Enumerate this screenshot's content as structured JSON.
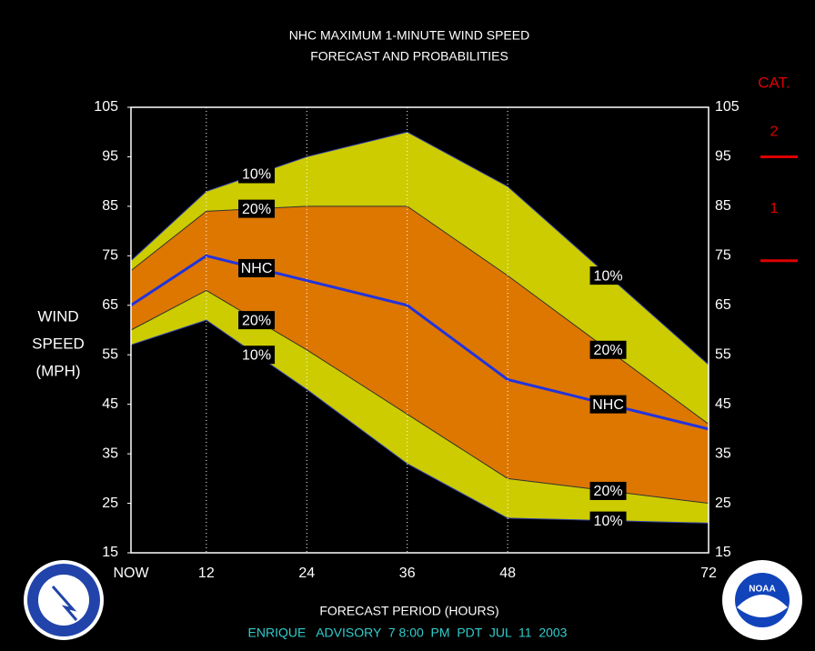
{
  "chart_data": {
    "type": "band",
    "title": "NHC MAXIMUM 1-MINUTE WIND SPEED",
    "subtitle": "FORECAST AND PROBABILITIES",
    "y_label": [
      "WIND",
      "SPEED",
      "(MPH)"
    ],
    "x_label": "FORECAST PERIOD (HOURS)",
    "footer": "ENRIQUE   ADVISORY  7 8:00  PM  PDT  JUL  11  2003",
    "x": [
      3,
      12,
      24,
      36,
      48,
      72
    ],
    "series": [
      {
        "name": "10%",
        "color": "#3344aa",
        "values": [
          74,
          88,
          95,
          100,
          89,
          53
        ]
      },
      {
        "name": "20%",
        "color": "#333333",
        "values": [
          72,
          84,
          85,
          85,
          71,
          41
        ]
      },
      {
        "name": "NHC",
        "color": "#2233dd",
        "values": [
          65,
          75,
          70,
          65,
          50,
          40
        ]
      },
      {
        "name": "20%",
        "color": "#333333",
        "values": [
          60,
          68,
          56,
          43,
          30,
          25
        ]
      },
      {
        "name": "10%",
        "color": "#3344aa",
        "values": [
          57,
          62,
          48,
          33,
          22,
          21
        ]
      }
    ],
    "band_colors": [
      "#cccc00",
      "#dd7700",
      "#dd7700",
      "#cccc00"
    ],
    "xlim": [
      3,
      72
    ],
    "xticks": [
      {
        "value": 3,
        "label": "NOW"
      },
      12,
      24,
      36,
      48,
      72
    ],
    "ylim": [
      15,
      105
    ],
    "yticks": [
      15,
      25,
      35,
      45,
      55,
      65,
      75,
      85,
      95,
      105
    ],
    "grid": true,
    "hurricane_categories": {
      "label": "CAT.",
      "color": "#dd0000",
      "levels": [
        {
          "name": "2",
          "value": 95
        },
        {
          "name": "1",
          "value": 74
        }
      ]
    },
    "logos": {
      "right": "NOAA"
    }
  }
}
